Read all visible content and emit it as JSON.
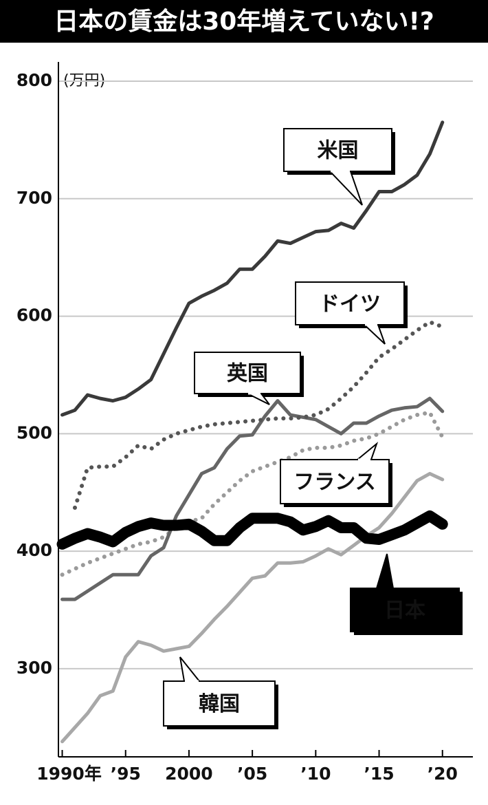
{
  "chart_data": {
    "type": "line",
    "title": "日本の賃金は30年増えていない!?",
    "y_unit": "(万円)",
    "x": [
      1990,
      1991,
      1992,
      1993,
      1994,
      1995,
      1996,
      1997,
      1998,
      1999,
      2000,
      2001,
      2002,
      2003,
      2004,
      2005,
      2006,
      2007,
      2008,
      2009,
      2010,
      2011,
      2012,
      2013,
      2014,
      2015,
      2016,
      2017,
      2018,
      2019,
      2020
    ],
    "xlim": [
      1989.7,
      2022.4
    ],
    "xticks": [
      {
        "value": 1990,
        "label": "1990年"
      },
      {
        "value": 1995,
        "label": "’95"
      },
      2000,
      {
        "value": 2005,
        "label": "’05"
      },
      {
        "value": 2010,
        "label": "’10"
      },
      {
        "value": 2015,
        "label": "’15"
      },
      {
        "value": 2020,
        "label": "’20"
      }
    ],
    "ylim": [
      225,
      800
    ],
    "yticks": [
      300,
      400,
      500,
      600,
      700,
      800
    ],
    "grid": true,
    "series": [
      {
        "name": "米国",
        "color": "#3a3a3a",
        "style": "solid",
        "values": [
          516,
          520,
          533,
          530,
          528,
          531,
          538,
          546,
          568,
          590,
          611,
          617,
          622,
          628,
          640,
          640,
          651,
          664,
          662,
          667,
          672,
          673,
          679,
          675,
          690,
          706,
          706,
          712,
          720,
          738,
          765
        ]
      },
      {
        "name": "ドイツ",
        "color": "#555555",
        "style": "dotted",
        "values": [
          null,
          437,
          471,
          472,
          472,
          480,
          490,
          487,
          495,
          500,
          503,
          506,
          508,
          509,
          510,
          511,
          512,
          513,
          513,
          514,
          516,
          521,
          530,
          540,
          552,
          565,
          572,
          580,
          588,
          595,
          591
        ]
      },
      {
        "name": "英国",
        "color": "#666666",
        "style": "solid",
        "values": [
          359,
          359,
          366,
          373,
          380,
          380,
          380,
          396,
          403,
          430,
          448,
          466,
          471,
          487,
          498,
          499,
          515,
          528,
          516,
          514,
          512,
          506,
          500,
          509,
          509,
          515,
          520,
          522,
          523,
          530,
          519
        ]
      },
      {
        "name": "フランス",
        "color": "#9a9a9a",
        "style": "dotted",
        "values": [
          380,
          385,
          390,
          394,
          398,
          402,
          406,
          408,
          412,
          420,
          425,
          428,
          440,
          450,
          460,
          468,
          472,
          476,
          480,
          486,
          488,
          488,
          490,
          494,
          496,
          500,
          506,
          512,
          516,
          518,
          497
        ]
      },
      {
        "name": "韓国",
        "color": "#a8a8a8",
        "style": "solid",
        "values": [
          238,
          250,
          262,
          277,
          281,
          310,
          323,
          320,
          315,
          317,
          319,
          330,
          342,
          353,
          365,
          377,
          379,
          390,
          390,
          391,
          396,
          402,
          397,
          405,
          413,
          420,
          432,
          446,
          460,
          466,
          461
        ]
      },
      {
        "name": "日本",
        "color": "#000000",
        "style": "bold",
        "values": [
          406,
          411,
          415,
          412,
          408,
          416,
          421,
          424,
          422,
          422,
          423,
          417,
          409,
          409,
          420,
          428,
          428,
          428,
          425,
          418,
          421,
          426,
          420,
          420,
          411,
          410,
          414,
          418,
          424,
          430,
          423
        ]
      }
    ]
  }
}
